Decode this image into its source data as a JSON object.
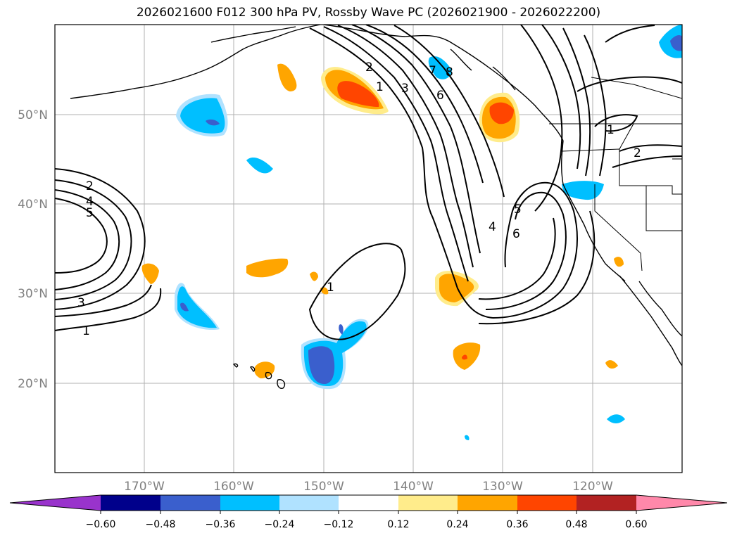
{
  "title": "2026021600 F012 300 hPa PV, Rossby Wave PC (2026021900 - 2026022200)",
  "latitude_labels": [
    "50°N",
    "40°N",
    "30°N",
    "20°N"
  ],
  "longitude_labels": [
    "170°W",
    "160°W",
    "150°W",
    "140°W",
    "130°W",
    "120°W"
  ],
  "colorbar": {
    "ticks": [
      "−0.60",
      "−0.48",
      "−0.36",
      "−0.24",
      "−0.12",
      "0.12",
      "0.24",
      "0.36",
      "0.48",
      "0.60"
    ],
    "colors": [
      "#9933cc",
      "#00008b",
      "#3a5fcd",
      "#00bfff",
      "#b0e2ff",
      "#ffffff",
      "#ffec8b",
      "#ffa500",
      "#ff4500",
      "#b22222",
      "#ff88aa"
    ]
  },
  "contour_labels": [
    "2",
    "1",
    "3",
    "6",
    "7",
    "8",
    "1",
    "2",
    "2",
    "4",
    "5",
    "3",
    "1",
    "1",
    "4",
    "5",
    "6"
  ]
}
